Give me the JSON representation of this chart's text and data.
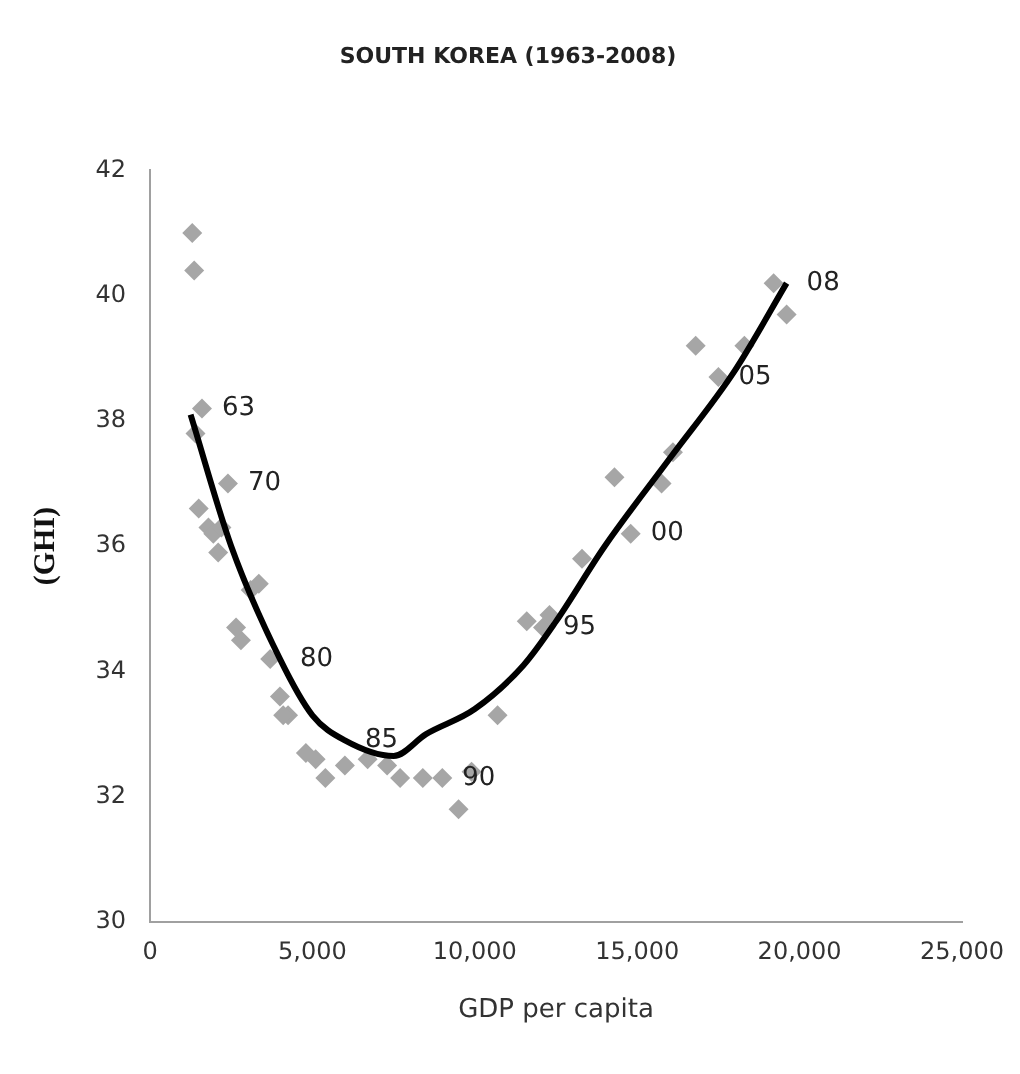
{
  "chart_data": {
    "type": "scatter",
    "title": "SOUTH KOREA (1963-2008)",
    "xlabel": "GDP per capita",
    "ylabel": "(GHI)",
    "series": [
      {
        "type": "scatter",
        "color": "#a6a6a6",
        "marker": "diamond",
        "x": [
          1300,
          1360,
          1600,
          1400,
          2400,
          1500,
          1800,
          1950,
          2100,
          2200,
          3100,
          3350,
          2800,
          2650,
          3700,
          4000,
          4250,
          4100,
          4800,
          5100,
          5400,
          6000,
          6700,
          7300,
          7700,
          8400,
          9000,
          9500,
          9900,
          10700,
          11600,
          12100,
          12300,
          13300,
          14800,
          14300,
          15750,
          16100,
          17500,
          16800,
          18300,
          19200,
          19600
        ],
        "values": [
          41.0,
          40.4,
          38.2,
          37.8,
          37.0,
          36.6,
          36.3,
          36.2,
          35.9,
          36.3,
          35.3,
          35.4,
          34.5,
          34.7,
          34.2,
          33.6,
          33.3,
          33.3,
          32.7,
          32.6,
          32.3,
          32.5,
          32.6,
          32.5,
          32.3,
          32.3,
          32.3,
          31.8,
          32.4,
          33.3,
          34.8,
          34.7,
          34.9,
          35.8,
          36.2,
          37.1,
          37.0,
          37.5,
          38.7,
          39.2,
          39.2,
          40.2,
          39.7
        ]
      },
      {
        "type": "line",
        "color": "#000000",
        "marker": "none",
        "x": [
          1250,
          2500,
          4000,
          5000,
          6000,
          7500,
          8500,
          10000,
          11500,
          12500,
          14000,
          16000,
          18000,
          19600
        ],
        "values": [
          38.1,
          36.0,
          34.2,
          33.3,
          32.9,
          32.65,
          33.0,
          33.4,
          34.1,
          34.8,
          36.0,
          37.4,
          38.8,
          40.2
        ]
      }
    ],
    "xlim": [
      0,
      25000
    ],
    "xticks": [
      0,
      {
        "value": 5000,
        "label": "5,000"
      },
      {
        "value": 10000,
        "label": "10,000"
      },
      {
        "value": 15000,
        "label": "15,000"
      },
      {
        "value": 20000,
        "label": "20,000"
      },
      {
        "value": 25000,
        "label": "25,000"
      }
    ],
    "ylim": [
      30,
      42
    ],
    "yticks": [
      30,
      32,
      34,
      36,
      38,
      40,
      42
    ],
    "grid": false,
    "legend": false,
    "annotations": [
      {
        "text": "63",
        "x": 1600,
        "y": 38.2
      },
      {
        "text": "70",
        "x": 2400,
        "y": 37.0
      },
      {
        "text": "80",
        "x": 4000,
        "y": 34.2
      },
      {
        "text": "85",
        "x": 6000,
        "y": 32.9
      },
      {
        "text": "90",
        "x": 9000,
        "y": 32.3
      },
      {
        "text": "95",
        "x": 12100,
        "y": 34.7
      },
      {
        "text": "00",
        "x": 14800,
        "y": 36.2
      },
      {
        "text": "05",
        "x": 17500,
        "y": 38.7
      },
      {
        "text": "08",
        "x": 19600,
        "y": 40.2
      }
    ]
  }
}
